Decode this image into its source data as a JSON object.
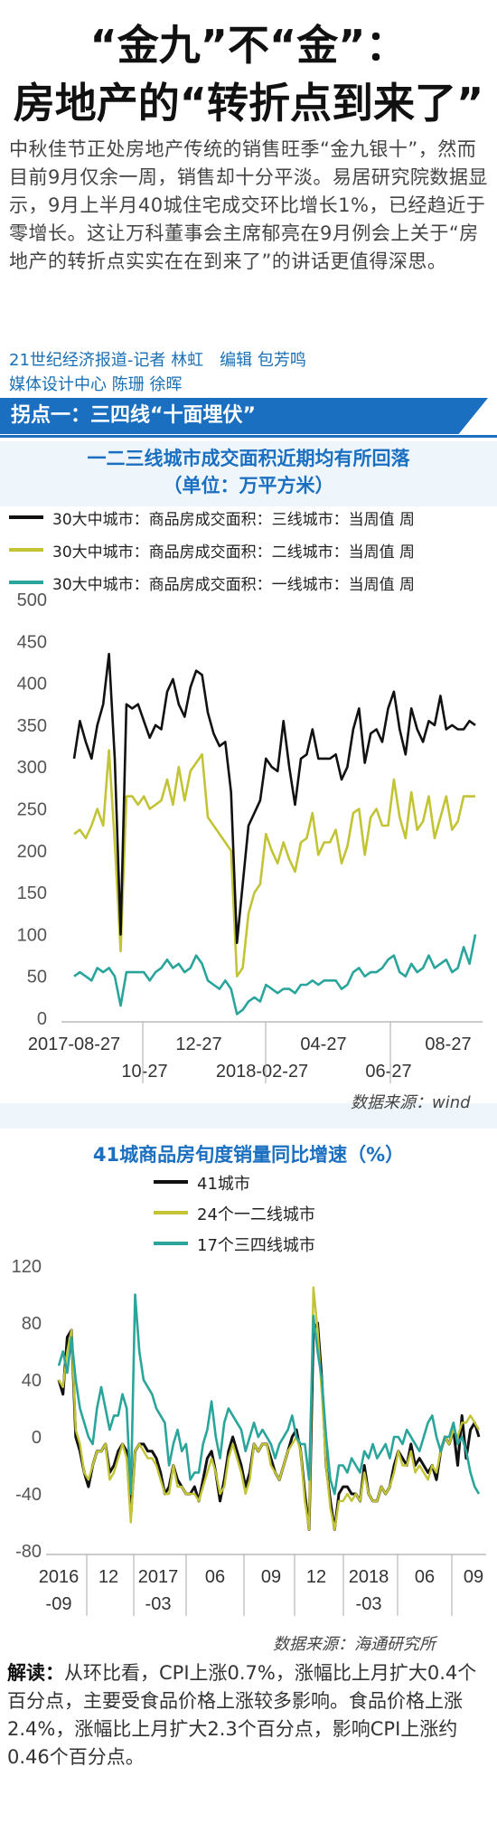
{
  "headline": {
    "line1": "“金九”不“金”：",
    "line2": "房地产的“转折点到来了”"
  },
  "intro": "中秋佳节正处房地产传统的销售旺季“金九银十”，然而目前9月仅余一周，销售却十分平淡。易居研究院数据显示，9月上半月40城住宅成交环比增长1%，已经趋近于零增长。这让万科董事会主席郁亮在9月例会上关于“房地产的转折点实实在在到来了”的讲话更值得深思。",
  "byline": {
    "line1": "21世纪经济报道-记者 林虹　编辑 包芳鸣",
    "line2": "媒体设计中心 陈珊 徐晖"
  },
  "section": {
    "label": "拐点一：三四线“十面埋伏”"
  },
  "chart1_title": {
    "line1": "一二三线城市成交面积近期均有所回落",
    "line2": "（单位：万平方米）"
  },
  "chart1_source": "数据来源：wind",
  "chart2_title": "41城商品房旬度销量同比增速（%）",
  "chart2_source": "数据来源：海通研究所",
  "reading": {
    "label": "解读：",
    "text": "从环比看，CPI上涨0.7%，涨幅比上月扩大0.4个百分点，主要受食品价格上涨较多影响。食品价格上涨2.4%，涨幅比上月扩大2.3个百分点，影响CPI上涨约0.46个百分点。"
  },
  "colors": {
    "black": "#111111",
    "olive": "#c2c435",
    "teal": "#2aa59c",
    "accent": "#1b6fc0"
  },
  "chart_data": [
    {
      "type": "line",
      "title": "一二三线城市成交面积近期均有所回落",
      "subtitle": "（单位：万平方米）",
      "ylim": [
        0,
        500
      ],
      "yticks": [
        0,
        50,
        100,
        150,
        200,
        250,
        300,
        350,
        400,
        450,
        500
      ],
      "xticks_row1": [
        "2017-08-27",
        "12-27",
        "04-27",
        "08-27"
      ],
      "xticks_row2": [
        "10-27",
        "2018-02-27",
        "06-27"
      ],
      "grid": false,
      "legend_position": "top",
      "series": [
        {
          "name": "30大中城市：商品房成交面积：三线城市：当周值 周",
          "color": "#111111",
          "values": [
            310,
            355,
            330,
            310,
            350,
            375,
            435,
            310,
            100,
            375,
            370,
            375,
            355,
            335,
            350,
            345,
            390,
            405,
            375,
            360,
            395,
            415,
            410,
            365,
            340,
            325,
            330,
            270,
            90,
            160,
            230,
            245,
            260,
            310,
            300,
            295,
            355,
            300,
            255,
            310,
            315,
            345,
            310,
            310,
            310,
            315,
            285,
            300,
            345,
            370,
            305,
            340,
            345,
            330,
            370,
            390,
            345,
            315,
            370,
            345,
            330,
            355,
            350,
            385,
            345,
            350,
            345,
            345,
            355,
            350
          ]
        },
        {
          "name": "30大中城市：商品房成交面积：二线城市：当周值 周",
          "color": "#c2c435",
          "values": [
            220,
            225,
            215,
            230,
            250,
            230,
            320,
            210,
            80,
            265,
            265,
            255,
            265,
            250,
            255,
            260,
            285,
            255,
            300,
            260,
            295,
            305,
            315,
            240,
            230,
            220,
            210,
            200,
            50,
            60,
            125,
            150,
            160,
            220,
            200,
            185,
            210,
            190,
            175,
            210,
            215,
            245,
            195,
            210,
            210,
            225,
            185,
            205,
            245,
            250,
            195,
            240,
            250,
            230,
            230,
            285,
            240,
            215,
            270,
            225,
            235,
            265,
            215,
            240,
            265,
            225,
            235,
            265,
            265,
            265
          ]
        },
        {
          "name": "30大中城市：商品房成交面积：一线城市：当周值 周",
          "color": "#2aa59c",
          "values": [
            50,
            55,
            50,
            45,
            60,
            55,
            60,
            50,
            15,
            55,
            55,
            55,
            55,
            45,
            55,
            60,
            70,
            60,
            65,
            55,
            60,
            75,
            65,
            45,
            40,
            35,
            45,
            35,
            5,
            10,
            20,
            25,
            20,
            40,
            35,
            30,
            35,
            35,
            30,
            40,
            40,
            45,
            40,
            45,
            45,
            45,
            35,
            40,
            55,
            60,
            50,
            55,
            55,
            60,
            70,
            75,
            55,
            50,
            65,
            55,
            60,
            75,
            60,
            65,
            70,
            55,
            60,
            85,
            65,
            100
          ]
        }
      ]
    },
    {
      "type": "line",
      "title": "41城商品房旬度销量同比增速（%）",
      "ylim": [
        -80,
        120
      ],
      "yticks": [
        -80,
        -40,
        0,
        40,
        80,
        120
      ],
      "xticks_row1": [
        "2016",
        "12",
        "2017",
        "06",
        "09",
        "12",
        "2018",
        "06",
        "09"
      ],
      "xticks_row2": [
        "-09",
        "-03",
        "-03"
      ],
      "grid": false,
      "legend_position": "top-left",
      "series": [
        {
          "name": "41城市",
          "color": "#111111",
          "values": [
            40,
            30,
            70,
            75,
            0,
            -10,
            -25,
            -35,
            -20,
            -10,
            -10,
            -5,
            -25,
            -20,
            -10,
            -5,
            -10,
            -55,
            -10,
            -5,
            -5,
            -10,
            -10,
            -15,
            -25,
            -40,
            -35,
            -20,
            -30,
            -35,
            -40,
            -40,
            -35,
            -45,
            -30,
            -15,
            -10,
            -25,
            -45,
            -30,
            -10,
            0,
            -10,
            -20,
            -35,
            -25,
            -5,
            -10,
            -5,
            -5,
            -15,
            -25,
            -30,
            -20,
            -10,
            0,
            5,
            -10,
            -40,
            -65,
            75,
            80,
            40,
            -20,
            -45,
            -65,
            -40,
            -35,
            -35,
            -40,
            -40,
            -45,
            -20,
            -40,
            -45,
            -45,
            -35,
            -40,
            -35,
            -20,
            -10,
            -15,
            -20,
            -5,
            -20,
            -15,
            -20,
            -25,
            -20,
            -30,
            -10,
            0,
            -5,
            5,
            -20,
            15,
            -15,
            5,
            10,
            0
          ]
        },
        {
          "name": "24个一二线城市",
          "color": "#c2c435",
          "values": [
            40,
            35,
            60,
            75,
            5,
            -5,
            -25,
            -30,
            -20,
            -10,
            -10,
            -5,
            -30,
            -25,
            -15,
            -5,
            -15,
            -60,
            -10,
            -5,
            -10,
            -15,
            -15,
            -20,
            -30,
            -40,
            -40,
            -20,
            -35,
            -35,
            -40,
            -40,
            -40,
            -45,
            -35,
            -25,
            -15,
            -25,
            -40,
            -35,
            -15,
            -5,
            -15,
            -25,
            -40,
            -30,
            -5,
            -10,
            -5,
            -5,
            -20,
            -25,
            -30,
            -20,
            -10,
            -5,
            0,
            -10,
            -45,
            -65,
            105,
            75,
            30,
            -20,
            -50,
            -65,
            -45,
            -45,
            -40,
            -45,
            -40,
            -45,
            -25,
            -40,
            -45,
            -45,
            -35,
            -40,
            -35,
            -25,
            -10,
            -20,
            -20,
            -10,
            -25,
            -20,
            -25,
            -30,
            -20,
            -25,
            -10,
            0,
            -5,
            5,
            0,
            10,
            10,
            15,
            10,
            5
          ]
        },
        {
          "name": "17个三四线城市",
          "color": "#2aa59c",
          "values": [
            50,
            60,
            45,
            70,
            40,
            20,
            10,
            0,
            -5,
            20,
            35,
            20,
            5,
            15,
            15,
            30,
            20,
            -40,
            100,
            60,
            40,
            35,
            30,
            20,
            15,
            10,
            -20,
            -5,
            5,
            -10,
            -5,
            -30,
            -25,
            -25,
            -5,
            5,
            25,
            0,
            -15,
            10,
            20,
            15,
            10,
            5,
            -10,
            0,
            10,
            0,
            5,
            0,
            -5,
            -15,
            -5,
            0,
            5,
            15,
            0,
            -5,
            -5,
            -30,
            85,
            60,
            40,
            0,
            -30,
            -40,
            -20,
            -20,
            -25,
            -15,
            -20,
            -25,
            -10,
            -15,
            -5,
            -15,
            -10,
            -5,
            -15,
            0,
            0,
            -5,
            5,
            0,
            -5,
            -10,
            0,
            10,
            15,
            0,
            -10,
            0,
            0,
            10,
            -5,
            0,
            -10,
            -25,
            -35,
            -40
          ]
        }
      ]
    }
  ]
}
